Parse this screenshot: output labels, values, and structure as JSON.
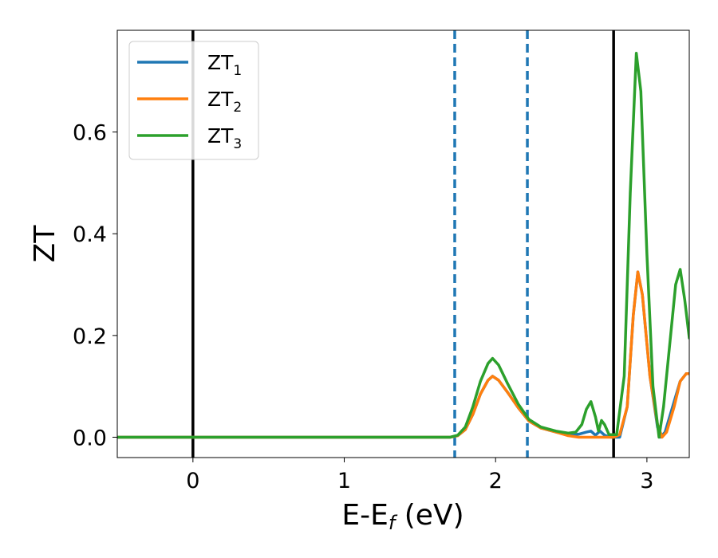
{
  "chart_data": {
    "type": "line",
    "xlabel": "E-E",
    "xlabel_sub": "f",
    "xlabel_unit": " (eV)",
    "ylabel": "ZT",
    "xlim": [
      -0.5,
      3.28
    ],
    "ylim": [
      -0.04,
      0.8
    ],
    "x_ticks": [
      0,
      1,
      2,
      3
    ],
    "x_tick_labels": [
      "0",
      "1",
      "2",
      "3"
    ],
    "y_ticks": [
      0.0,
      0.2,
      0.4,
      0.6
    ],
    "y_tick_labels": [
      "0.0",
      "0.2",
      "0.4",
      "0.6"
    ],
    "grid": false,
    "legend_position": "top-left",
    "vlines": [
      {
        "x": 0.0,
        "style": "solid",
        "color": "#000000"
      },
      {
        "x": 1.73,
        "style": "dashed",
        "color": "#1f77b4"
      },
      {
        "x": 2.21,
        "style": "dashed",
        "color": "#1f77b4"
      },
      {
        "x": 2.78,
        "style": "solid",
        "color": "#000000"
      }
    ],
    "series": [
      {
        "name": "ZT",
        "name_sub": "1",
        "color": "#1f77b4",
        "points": [
          [
            -0.5,
            0
          ],
          [
            1.7,
            0
          ],
          [
            1.75,
            0.003
          ],
          [
            1.8,
            0.015
          ],
          [
            1.85,
            0.045
          ],
          [
            1.9,
            0.085
          ],
          [
            1.95,
            0.112
          ],
          [
            1.98,
            0.12
          ],
          [
            2.02,
            0.112
          ],
          [
            2.08,
            0.088
          ],
          [
            2.15,
            0.058
          ],
          [
            2.22,
            0.032
          ],
          [
            2.3,
            0.018
          ],
          [
            2.4,
            0.01
          ],
          [
            2.48,
            0.005
          ],
          [
            2.55,
            0.006
          ],
          [
            2.6,
            0.01
          ],
          [
            2.63,
            0.012
          ],
          [
            2.66,
            0.004
          ],
          [
            2.69,
            0.012
          ],
          [
            2.72,
            0.004
          ],
          [
            2.76,
            0.0
          ],
          [
            2.82,
            0.0
          ],
          [
            2.87,
            0.06
          ],
          [
            2.91,
            0.24
          ],
          [
            2.94,
            0.325
          ],
          [
            2.97,
            0.28
          ],
          [
            3.02,
            0.12
          ],
          [
            3.07,
            0.02
          ],
          [
            3.09,
            0.0
          ],
          [
            3.12,
            0.01
          ],
          [
            3.17,
            0.06
          ],
          [
            3.22,
            0.11
          ],
          [
            3.26,
            0.125
          ],
          [
            3.28,
            0.125
          ]
        ]
      },
      {
        "name": "ZT",
        "name_sub": "2",
        "color": "#ff7f0e",
        "points": [
          [
            -0.5,
            0
          ],
          [
            1.7,
            0
          ],
          [
            1.75,
            0.003
          ],
          [
            1.8,
            0.015
          ],
          [
            1.85,
            0.045
          ],
          [
            1.9,
            0.085
          ],
          [
            1.95,
            0.112
          ],
          [
            1.98,
            0.12
          ],
          [
            2.02,
            0.112
          ],
          [
            2.08,
            0.088
          ],
          [
            2.15,
            0.058
          ],
          [
            2.22,
            0.032
          ],
          [
            2.3,
            0.018
          ],
          [
            2.4,
            0.01
          ],
          [
            2.48,
            0.003
          ],
          [
            2.55,
            0.0
          ],
          [
            2.62,
            0.0
          ],
          [
            2.68,
            0.0
          ],
          [
            2.72,
            0.0
          ],
          [
            2.78,
            0.0
          ],
          [
            2.82,
            0.005
          ],
          [
            2.87,
            0.06
          ],
          [
            2.91,
            0.24
          ],
          [
            2.94,
            0.325
          ],
          [
            2.97,
            0.28
          ],
          [
            3.02,
            0.12
          ],
          [
            3.07,
            0.025
          ],
          [
            3.1,
            0.0
          ],
          [
            3.13,
            0.01
          ],
          [
            3.18,
            0.06
          ],
          [
            3.22,
            0.11
          ],
          [
            3.26,
            0.125
          ],
          [
            3.28,
            0.125
          ]
        ]
      },
      {
        "name": "ZT",
        "name_sub": "3",
        "color": "#2ca02c",
        "points": [
          [
            -0.5,
            0
          ],
          [
            1.7,
            0
          ],
          [
            1.75,
            0.004
          ],
          [
            1.8,
            0.02
          ],
          [
            1.85,
            0.06
          ],
          [
            1.9,
            0.11
          ],
          [
            1.95,
            0.145
          ],
          [
            1.98,
            0.155
          ],
          [
            2.02,
            0.142
          ],
          [
            2.08,
            0.105
          ],
          [
            2.15,
            0.065
          ],
          [
            2.22,
            0.035
          ],
          [
            2.3,
            0.02
          ],
          [
            2.4,
            0.012
          ],
          [
            2.48,
            0.008
          ],
          [
            2.53,
            0.01
          ],
          [
            2.57,
            0.025
          ],
          [
            2.6,
            0.055
          ],
          [
            2.63,
            0.07
          ],
          [
            2.66,
            0.04
          ],
          [
            2.68,
            0.012
          ],
          [
            2.7,
            0.033
          ],
          [
            2.72,
            0.025
          ],
          [
            2.75,
            0.005
          ],
          [
            2.8,
            0.005
          ],
          [
            2.85,
            0.12
          ],
          [
            2.89,
            0.48
          ],
          [
            2.93,
            0.755
          ],
          [
            2.96,
            0.68
          ],
          [
            3.0,
            0.36
          ],
          [
            3.04,
            0.1
          ],
          [
            3.08,
            0.0
          ],
          [
            3.11,
            0.06
          ],
          [
            3.15,
            0.18
          ],
          [
            3.19,
            0.3
          ],
          [
            3.22,
            0.33
          ],
          [
            3.25,
            0.27
          ],
          [
            3.28,
            0.195
          ]
        ]
      }
    ]
  }
}
